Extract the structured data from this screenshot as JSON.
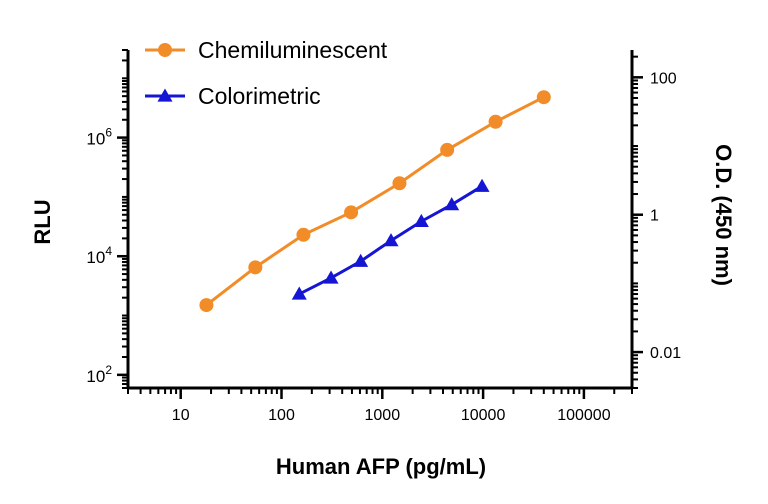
{
  "chart_data": {
    "type": "scatter",
    "xscale": "log",
    "xlabel": "Human AFP (pg/mL)",
    "ylabel_left": "RLU",
    "ylabel_right": "O.D. (450 nm)",
    "xlim": [
      3,
      300000
    ],
    "ylim_left": [
      60,
      30000000
    ],
    "ylim_right": [
      0.003,
      250
    ],
    "x_ticks": [
      {
        "value": 10,
        "label": "10"
      },
      {
        "value": 100,
        "label": "100"
      },
      {
        "value": 1000,
        "label": "1000"
      },
      {
        "value": 10000,
        "label": "10000"
      },
      {
        "value": 100000,
        "label": "100000"
      }
    ],
    "y_left_ticks": [
      {
        "value": 100,
        "base": "10",
        "exp": "2"
      },
      {
        "value": 10000,
        "base": "10",
        "exp": "4"
      },
      {
        "value": 1000000,
        "base": "10",
        "exp": "6"
      }
    ],
    "y_right_ticks": [
      {
        "value": 0.01,
        "label": "0.01"
      },
      {
        "value": 1,
        "label": "1"
      },
      {
        "value": 100,
        "label": "100"
      }
    ],
    "legend_position": "top-left",
    "series": [
      {
        "name": "Chemiluminescent",
        "axis": "left",
        "color": "#F28C28",
        "marker": "circle",
        "x": [
          18,
          55,
          165,
          490,
          1480,
          4400,
          13300,
          40000
        ],
        "y": [
          1500,
          6500,
          23000,
          55000,
          170000,
          620000,
          1850000,
          4800000
        ]
      },
      {
        "name": "Colorimetric",
        "axis": "right",
        "color": "#1515D4",
        "marker": "triangle",
        "x": [
          150,
          310,
          610,
          1220,
          2440,
          4880,
          9760
        ],
        "y": [
          0.07,
          0.12,
          0.21,
          0.42,
          0.8,
          1.4,
          2.6
        ]
      }
    ]
  }
}
